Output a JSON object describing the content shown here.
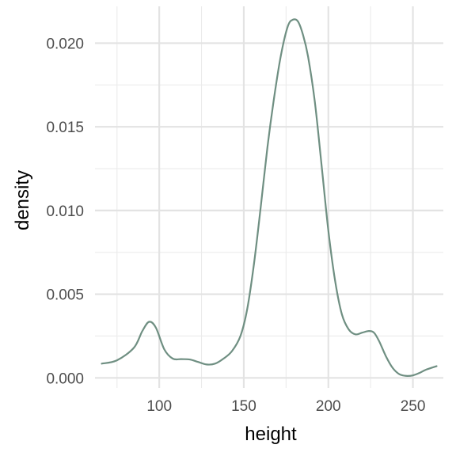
{
  "chart_data": {
    "type": "line",
    "title": "",
    "xlabel": "height",
    "ylabel": "density",
    "xlim": [
      62,
      268
    ],
    "ylim": [
      -0.0006,
      0.0222
    ],
    "x_ticks": [
      100,
      150,
      200,
      250
    ],
    "x_tick_labels": [
      "100",
      "150",
      "200",
      "250"
    ],
    "y_ticks": [
      0.0,
      0.005,
      0.01,
      0.015,
      0.02
    ],
    "y_tick_labels": [
      "0.000",
      "0.005",
      "0.010",
      "0.015",
      "0.020"
    ],
    "grid": true,
    "legend": "none",
    "line_color": "#6f8f82",
    "series": [
      {
        "x": [
          66,
          75,
          85,
          90,
          94,
          98,
          103,
          108,
          113,
          118,
          123,
          128,
          133,
          138,
          143,
          148,
          152,
          156,
          160,
          164,
          168,
          172,
          176,
          179,
          182,
          185,
          188,
          192,
          196,
          200,
          204,
          208,
          212,
          216,
          220,
          224,
          227,
          230,
          234,
          238,
          242,
          246,
          250,
          254,
          258,
          264
        ],
        "y": [
          0.00085,
          0.00105,
          0.0018,
          0.0028,
          0.00335,
          0.003,
          0.0017,
          0.00115,
          0.00112,
          0.0011,
          0.00095,
          0.0008,
          0.00085,
          0.00115,
          0.0016,
          0.0025,
          0.0041,
          0.0068,
          0.0102,
          0.0138,
          0.0168,
          0.0193,
          0.021,
          0.0214,
          0.0213,
          0.0205,
          0.0192,
          0.0165,
          0.0127,
          0.0088,
          0.0058,
          0.0038,
          0.0029,
          0.0026,
          0.0027,
          0.0028,
          0.0027,
          0.0022,
          0.0013,
          0.0006,
          0.00022,
          0.00012,
          0.00015,
          0.0003,
          0.0005,
          0.0007
        ]
      }
    ]
  }
}
